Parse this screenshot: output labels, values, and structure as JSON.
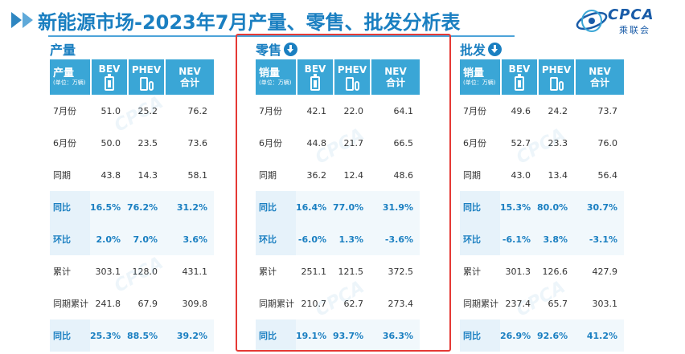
{
  "title": "新能源市场-2023年7月产量、零售、批发分析表",
  "logo": {
    "brand": "CPCA",
    "sub": "乘联会",
    "icon": "cpca-swirl-logo"
  },
  "unit_label": "(单位：万辆)",
  "columns": [
    "BEV",
    "PHEV",
    "NEV合计"
  ],
  "column_icons": [
    "battery-icon",
    "fuel-plug-icon",
    ""
  ],
  "colors": {
    "accent": "#1a7fc1",
    "header_bg": "#3aa6d6",
    "highlight_frame": "#e53935",
    "alt_row_text": "#1a7fc1"
  },
  "sections": [
    {
      "id": "production",
      "title": "产量",
      "has_arrow": false,
      "header_label": "产量",
      "rows": [
        {
          "label": "7月份",
          "values": [
            "51.0",
            "25.2",
            "76.2"
          ],
          "highlight": false
        },
        {
          "label": "6月份",
          "values": [
            "50.0",
            "23.5",
            "73.6"
          ],
          "highlight": false
        },
        {
          "label": "同期",
          "values": [
            "43.8",
            "14.3",
            "58.1"
          ],
          "highlight": false
        },
        {
          "label": "同比",
          "values": [
            "16.5%",
            "76.2%",
            "31.2%"
          ],
          "highlight": true
        },
        {
          "label": "环比",
          "values": [
            "2.0%",
            "7.0%",
            "3.6%"
          ],
          "highlight": true
        },
        {
          "label": "累计",
          "values": [
            "303.1",
            "128.0",
            "431.1"
          ],
          "highlight": false
        },
        {
          "label": "同期累计",
          "values": [
            "241.8",
            "67.9",
            "309.8"
          ],
          "highlight": false
        },
        {
          "label": "同比",
          "values": [
            "25.3%",
            "88.5%",
            "39.2%"
          ],
          "highlight": true
        }
      ]
    },
    {
      "id": "retail",
      "title": "零售",
      "has_arrow": true,
      "header_label": "销量",
      "rows": [
        {
          "label": "7月份",
          "values": [
            "42.1",
            "22.0",
            "64.1"
          ],
          "highlight": false
        },
        {
          "label": "6月份",
          "values": [
            "44.8",
            "21.7",
            "66.5"
          ],
          "highlight": false
        },
        {
          "label": "同期",
          "values": [
            "36.2",
            "12.4",
            "48.6"
          ],
          "highlight": false
        },
        {
          "label": "同比",
          "values": [
            "16.4%",
            "77.0%",
            "31.9%"
          ],
          "highlight": true
        },
        {
          "label": "环比",
          "values": [
            "-6.0%",
            "1.3%",
            "-3.6%"
          ],
          "highlight": true
        },
        {
          "label": "累计",
          "values": [
            "251.1",
            "121.5",
            "372.5"
          ],
          "highlight": false
        },
        {
          "label": "同期累计",
          "values": [
            "210.7",
            "62.7",
            "273.4"
          ],
          "highlight": false
        },
        {
          "label": "同比",
          "values": [
            "19.1%",
            "93.7%",
            "36.3%"
          ],
          "highlight": true
        }
      ]
    },
    {
      "id": "wholesale",
      "title": "批发",
      "has_arrow": true,
      "header_label": "销量",
      "rows": [
        {
          "label": "7月份",
          "values": [
            "49.6",
            "24.2",
            "73.7"
          ],
          "highlight": false
        },
        {
          "label": "6月份",
          "values": [
            "52.7",
            "23.3",
            "76.0"
          ],
          "highlight": false
        },
        {
          "label": "同期",
          "values": [
            "43.0",
            "13.4",
            "56.4"
          ],
          "highlight": false
        },
        {
          "label": "同比",
          "values": [
            "15.3%",
            "80.0%",
            "30.7%"
          ],
          "highlight": true
        },
        {
          "label": "环比",
          "values": [
            "-6.1%",
            "3.8%",
            "-3.1%"
          ],
          "highlight": true
        },
        {
          "label": "累计",
          "values": [
            "301.3",
            "126.6",
            "427.9"
          ],
          "highlight": false
        },
        {
          "label": "同期累计",
          "values": [
            "237.4",
            "65.7",
            "303.1"
          ],
          "highlight": false
        },
        {
          "label": "同比",
          "values": [
            "26.9%",
            "92.6%",
            "41.2%"
          ],
          "highlight": true
        }
      ]
    }
  ]
}
